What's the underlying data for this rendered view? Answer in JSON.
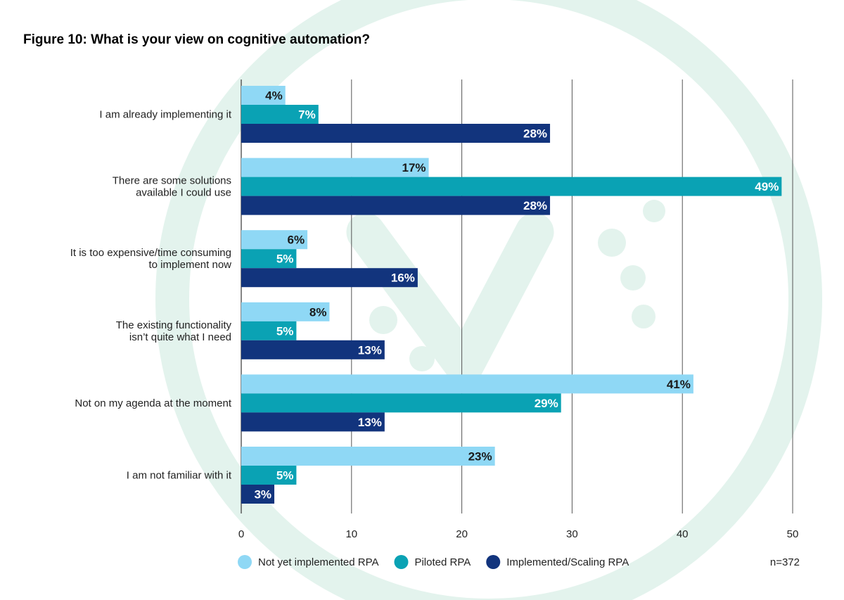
{
  "chart_data": {
    "type": "bar",
    "orientation": "horizontal",
    "title": "Figure 10: What is your view on cognitive automation?",
    "categories": [
      [
        "I am already implementing it"
      ],
      [
        "There are some solutions",
        "available I could use"
      ],
      [
        "It is too expensive/time consuming",
        "to implement now"
      ],
      [
        "The existing functionality",
        "isn’t quite what I need"
      ],
      [
        "Not on my agenda at the moment"
      ],
      [
        "I am not familiar with it"
      ]
    ],
    "series": [
      {
        "name": "Not yet implemented RPA",
        "color": "#8fd8f5",
        "label_color": "#1a1a1a",
        "values": [
          4,
          17,
          6,
          8,
          41,
          23
        ]
      },
      {
        "name": "Piloted RPA",
        "color": "#0aa2b4",
        "label_color": "#ffffff",
        "values": [
          7,
          49,
          5,
          5,
          29,
          5
        ]
      },
      {
        "name": "Implemented/Scaling RPA",
        "color": "#12347d",
        "label_color": "#ffffff",
        "values": [
          28,
          28,
          16,
          13,
          13,
          3
        ]
      }
    ],
    "value_suffix": "%",
    "xlim": [
      0,
      50
    ],
    "xticks": [
      0,
      10,
      20,
      30,
      40,
      50
    ],
    "grid": true,
    "legend_position": "bottom",
    "note": "n=372",
    "watermark_color": "#e3f3ed"
  }
}
